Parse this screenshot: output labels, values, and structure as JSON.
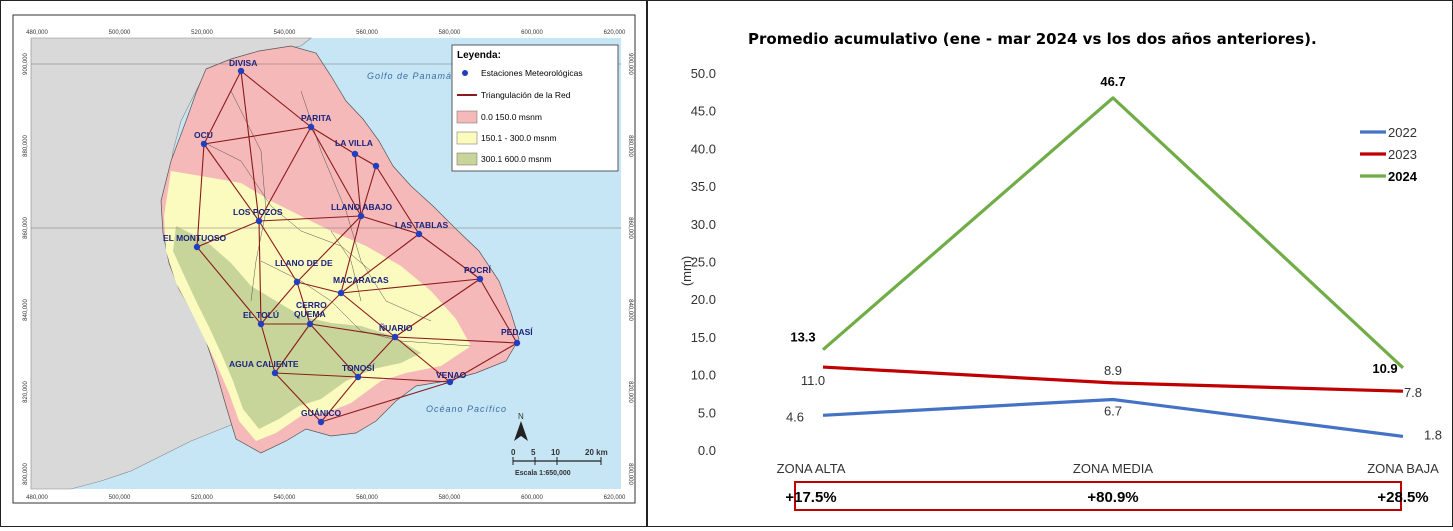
{
  "map": {
    "legend": {
      "title": "Leyenda:",
      "items": [
        {
          "label": "Estaciones Meteorológicas",
          "kind": "point",
          "color": "#1f3fbf"
        },
        {
          "label": "Triangulación de la Red",
          "kind": "line",
          "color": "#8b1a1a"
        },
        {
          "label": "0.0   150.0 msnm",
          "kind": "fill",
          "color": "#f6b9b9"
        },
        {
          "label": "150.1 - 300.0 msnm",
          "kind": "fill",
          "color": "#fbfbbf"
        },
        {
          "label": "300.1   600.0 msnm",
          "kind": "fill",
          "color": "#c8d59a"
        }
      ]
    },
    "top_ticks": [
      "480,000",
      "500,000",
      "520,000",
      "540,000",
      "560,000",
      "580,000",
      "600,000",
      "620,000"
    ],
    "bottom_ticks": [
      "480,000",
      "500,000",
      "520,000",
      "540,000",
      "560,000",
      "580,000",
      "600,000",
      "620,000"
    ],
    "side_ticks": [
      "900,000",
      "880,000",
      "860,000",
      "840,000",
      "820,000",
      "800,000"
    ],
    "water_labels": {
      "gulf": "Golfo de Panamá",
      "ocean": "Océano Pacífico"
    },
    "scale": {
      "ticks": [
        "0",
        "5",
        "10",
        "20 km"
      ],
      "text": "Escala 1:650,000",
      "north": "N"
    },
    "stations": [
      "DIVISA",
      "OCU",
      "PARITA",
      "LA VILLA",
      "LOS POZOS",
      "LLANO ABAJO",
      "LAS TABLAS",
      "EL MONTUOSO",
      "LLANO DE PIEDRA",
      "MACARACAS",
      "POCRÍ",
      "CERRO QUEMA",
      "EL TOLÚ",
      "ÑUARIO",
      "PEDASÍ",
      "AGUA CALIENTE",
      "TONOSÍ",
      "VENAO",
      "GUÁNICO"
    ],
    "colors": {
      "lowland": "#f6b9b9",
      "mid": "#fbfbbf",
      "high": "#c8d59a",
      "sea": "#c7e6f5",
      "land_outside": "#d9d9d9",
      "station": "#1f3fbf",
      "network": "#8b1a1a"
    }
  },
  "chart_data": {
    "type": "line",
    "title": "Promedio acumulativo (ene - mar 2024 vs los dos años anteriores).",
    "ylabel": "(mm)",
    "xlabel": "",
    "categories": [
      "ZONA ALTA",
      "ZONA MEDIA",
      "ZONA BAJA"
    ],
    "ylim": [
      0,
      50
    ],
    "yticks": [
      "0.0",
      "5.0",
      "10.0",
      "15.0",
      "20.0",
      "25.0",
      "30.0",
      "35.0",
      "40.0",
      "45.0",
      "50.0"
    ],
    "grid": false,
    "legend_position": "right",
    "series": [
      {
        "name": "2022",
        "values": [
          4.6,
          6.7,
          1.8
        ],
        "labels": [
          "4.6",
          "6.7",
          "1.8"
        ],
        "color": "#4472c4"
      },
      {
        "name": "2023",
        "values": [
          11.0,
          8.9,
          7.8
        ],
        "labels": [
          "11.0",
          "8.9",
          "7.8"
        ],
        "color": "#c00000"
      },
      {
        "name": "2024",
        "values": [
          13.3,
          46.7,
          10.9
        ],
        "labels": [
          "13.3",
          "46.7",
          "10.9"
        ],
        "color": "#70ad47"
      }
    ],
    "percent_changes": [
      "+17.5%",
      "+80.9%",
      "+28.5%"
    ],
    "percent_box_color": "#c00000"
  }
}
